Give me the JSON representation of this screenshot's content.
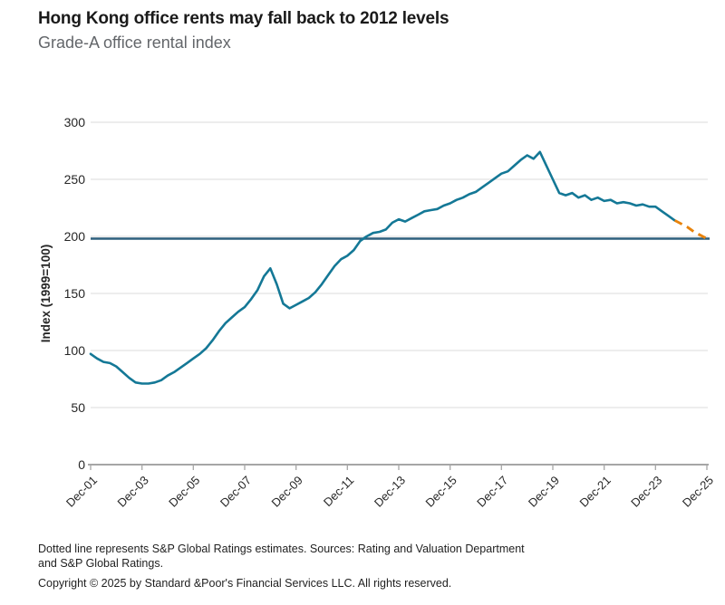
{
  "header": {
    "title": "Hong Kong office rents may fall back to 2012 levels",
    "subtitle": "Grade-A office rental index"
  },
  "footer": {
    "note_line1": "Dotted line represents S&P Global Ratings estimates. Sources: Rating and Valuation Department",
    "note_line2": "and S&P Global Ratings.",
    "copyright": "Copyright © 2025 by Standard &Poor's Financial Services LLC. All rights reserved."
  },
  "colors": {
    "series": "#147896",
    "estimate": "#E8830C",
    "reference": "#2D5F7D",
    "grid": "#DBDBDB",
    "axis": "#A6A6A6",
    "title_text": "#1A1A1A",
    "subtitle_text": "#63666A",
    "tick_text": "#262626",
    "footer_text": "#1F1F1F"
  },
  "chart_data": {
    "type": "line",
    "title": "Grade-A office rental index",
    "xlabel": "",
    "ylabel": "Index (1999=100)",
    "ylim": [
      0,
      300
    ],
    "yticks": [
      0,
      50,
      100,
      150,
      200,
      250,
      300
    ],
    "x_range_years": [
      0,
      24
    ],
    "x_axis": {
      "tick_interval_years": 2,
      "tick_labels": [
        "Dec-01",
        "Dec-03",
        "Dec-05",
        "Dec-07",
        "Dec-09",
        "Dec-11",
        "Dec-13",
        "Dec-15",
        "Dec-17",
        "Dec-19",
        "Dec-21",
        "Dec-23",
        "Dec-25"
      ]
    },
    "grid": "horizontal",
    "legend_position": "none",
    "reference_line_value": 198,
    "series": [
      {
        "name": "Grade-A office rental index (actual)",
        "style": "solid",
        "color_key": "series",
        "x_start": 0,
        "x_step": 0.25,
        "values": [
          97,
          93,
          90,
          89,
          86,
          81,
          76,
          72,
          71,
          71,
          72,
          74,
          78,
          81,
          85,
          89,
          93,
          97,
          102,
          109,
          117,
          124,
          129,
          134,
          138,
          145,
          153,
          165,
          172,
          158,
          141,
          137,
          140,
          143,
          146,
          151,
          158,
          166,
          174,
          180,
          183,
          188,
          196,
          200,
          203,
          204,
          206,
          212,
          215,
          213,
          216,
          219,
          222,
          223,
          224,
          227,
          229,
          232,
          234,
          237,
          239,
          243,
          247,
          251,
          255,
          257,
          262,
          267,
          271,
          268,
          274,
          262,
          250,
          238,
          236,
          238,
          234,
          236,
          232,
          234,
          231,
          232,
          229,
          230,
          229,
          227,
          228,
          226,
          226,
          222,
          218,
          214
        ]
      },
      {
        "name": "S&P Global Ratings estimates",
        "style": "dashed",
        "color_key": "estimate",
        "x": [
          22.75,
          23.0,
          23.25,
          23.5,
          23.75,
          24.0
        ],
        "values": [
          214,
          211,
          208,
          204,
          201,
          198
        ]
      }
    ]
  }
}
